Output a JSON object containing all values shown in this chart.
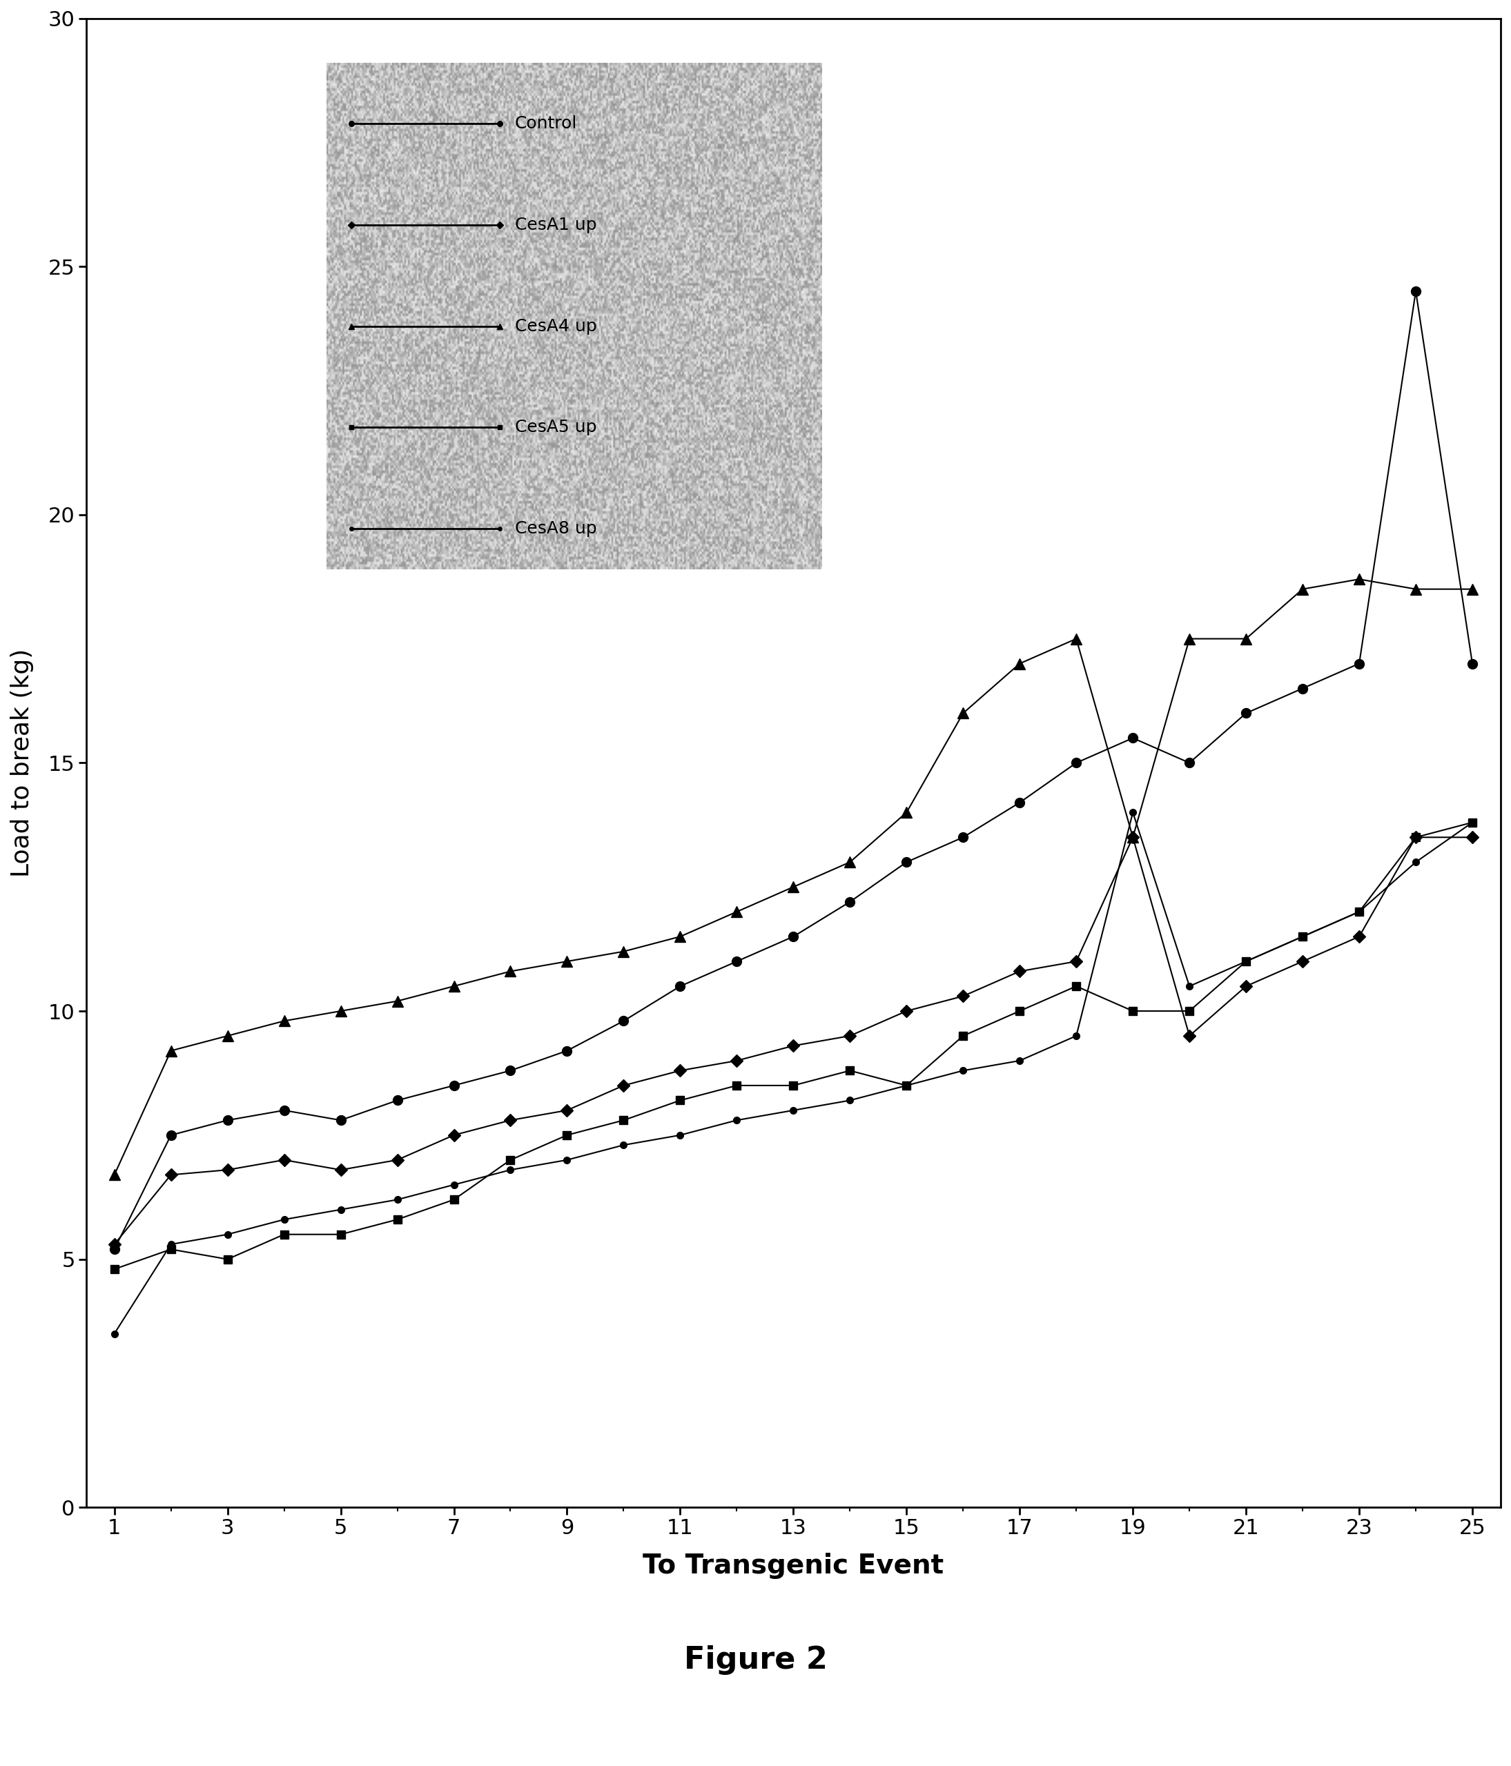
{
  "title": "",
  "xlabel": "To Transgenic Event",
  "ylabel": "Load to break (kg)",
  "figure_caption": "Figure 2",
  "xlim": [
    1,
    25
  ],
  "ylim": [
    0,
    30
  ],
  "xticks": [
    1,
    3,
    5,
    7,
    9,
    11,
    13,
    15,
    17,
    19,
    21,
    23,
    25
  ],
  "yticks": [
    0,
    5,
    10,
    15,
    20,
    25,
    30
  ],
  "series": [
    {
      "label": "Control",
      "marker": "o",
      "x": [
        1,
        2,
        3,
        4,
        5,
        6,
        7,
        8,
        9,
        10,
        11,
        12,
        13,
        14,
        15,
        16,
        17,
        18,
        19,
        20,
        21,
        22,
        23,
        24,
        25
      ],
      "y": [
        5.2,
        7.5,
        7.8,
        8.0,
        7.8,
        8.2,
        8.5,
        8.8,
        9.2,
        9.8,
        10.5,
        11.0,
        11.5,
        12.2,
        13.0,
        13.5,
        14.2,
        15.0,
        15.5,
        15.0,
        16.0,
        16.5,
        17.0,
        24.5,
        17.0
      ]
    },
    {
      "label": "CesA1 up",
      "marker": "D",
      "x": [
        1,
        2,
        3,
        4,
        5,
        6,
        7,
        8,
        9,
        10,
        11,
        12,
        13,
        14,
        15,
        16,
        17,
        18,
        19,
        20,
        21,
        22,
        23,
        24,
        25
      ],
      "y": [
        5.3,
        6.7,
        6.8,
        7.0,
        6.8,
        7.0,
        7.5,
        7.8,
        8.0,
        8.5,
        8.8,
        9.0,
        9.3,
        9.5,
        10.0,
        10.3,
        10.8,
        11.0,
        13.5,
        9.5,
        10.5,
        11.0,
        11.5,
        13.5,
        13.5
      ]
    },
    {
      "label": "CesA4 up",
      "marker": "^",
      "x": [
        1,
        2,
        3,
        4,
        5,
        6,
        7,
        8,
        9,
        10,
        11,
        12,
        13,
        14,
        15,
        16,
        17,
        18,
        19,
        20,
        21,
        22,
        23,
        24,
        25
      ],
      "y": [
        6.7,
        9.2,
        9.5,
        9.8,
        10.0,
        10.2,
        10.5,
        10.8,
        11.0,
        11.2,
        11.5,
        12.0,
        12.5,
        13.0,
        14.0,
        16.0,
        17.0,
        17.5,
        13.5,
        17.5,
        17.5,
        18.5,
        18.7,
        18.5,
        18.5
      ]
    },
    {
      "label": "CesA5 up",
      "marker": "s",
      "x": [
        1,
        2,
        3,
        4,
        5,
        6,
        7,
        8,
        9,
        10,
        11,
        12,
        13,
        14,
        15,
        16,
        17,
        18,
        19,
        20,
        21,
        22,
        23,
        24,
        25
      ],
      "y": [
        4.8,
        5.2,
        5.0,
        5.5,
        5.5,
        5.8,
        6.2,
        7.0,
        7.5,
        7.8,
        8.2,
        8.5,
        8.5,
        8.8,
        8.5,
        9.5,
        10.0,
        10.5,
        10.0,
        10.0,
        11.0,
        11.5,
        12.0,
        13.5,
        13.8
      ]
    },
    {
      "label": "CesA8 up",
      "marker": "o",
      "x": [
        1,
        2,
        3,
        4,
        5,
        6,
        7,
        8,
        9,
        10,
        11,
        12,
        13,
        14,
        15,
        16,
        17,
        18,
        19,
        20,
        21,
        22,
        23,
        24,
        25
      ],
      "y": [
        3.5,
        5.3,
        5.5,
        5.8,
        6.0,
        6.2,
        6.5,
        6.8,
        7.0,
        7.3,
        7.5,
        7.8,
        8.0,
        8.2,
        8.5,
        8.8,
        9.0,
        9.5,
        14.0,
        10.5,
        11.0,
        11.5,
        12.0,
        13.0,
        13.8
      ]
    }
  ],
  "legend_labels": [
    "Control",
    "CesA1 up",
    "CesA4 up",
    "CesA5 up",
    "CesA8 up"
  ],
  "legend_markers": [
    "o",
    "D",
    "^",
    "s",
    "o"
  ],
  "marker_sizes": [
    10,
    9,
    11,
    9,
    7
  ],
  "line_color": "#000000",
  "linewidth": 1.5
}
